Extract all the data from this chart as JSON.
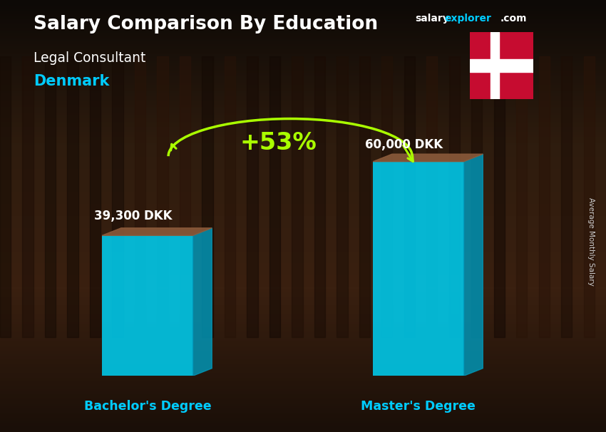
{
  "title_main": "Salary Comparison By Education",
  "website_salary": "salary",
  "website_explorer": "explorer",
  "website_com": ".com",
  "subtitle_job": "Legal Consultant",
  "subtitle_country": "Denmark",
  "categories": [
    "Bachelor's Degree",
    "Master's Degree"
  ],
  "values": [
    39300,
    60000
  ],
  "value_labels": [
    "39,300 DKK",
    "60,000 DKK"
  ],
  "pct_change": "+53%",
  "bar_color_face": "#00ccee",
  "bar_color_right": "#0099bb",
  "bar_color_top": "#8b5a3a",
  "bg_top_color": "#2a1a0e",
  "bg_bottom_color": "#1a1008",
  "title_color": "#ffffff",
  "subtitle_job_color": "#ffffff",
  "subtitle_country_color": "#00ccff",
  "value_label_color": "#ffffff",
  "category_label_color": "#00ccff",
  "pct_color": "#aaff00",
  "ylabel_color": "#cccccc",
  "website_salary_color": "#ffffff",
  "website_explorer_color": "#00ccff",
  "website_com_color": "#ffffff",
  "flag_red": "#c60c30",
  "flag_white": "#ffffff",
  "ylabel_text": "Average Monthly Salary"
}
